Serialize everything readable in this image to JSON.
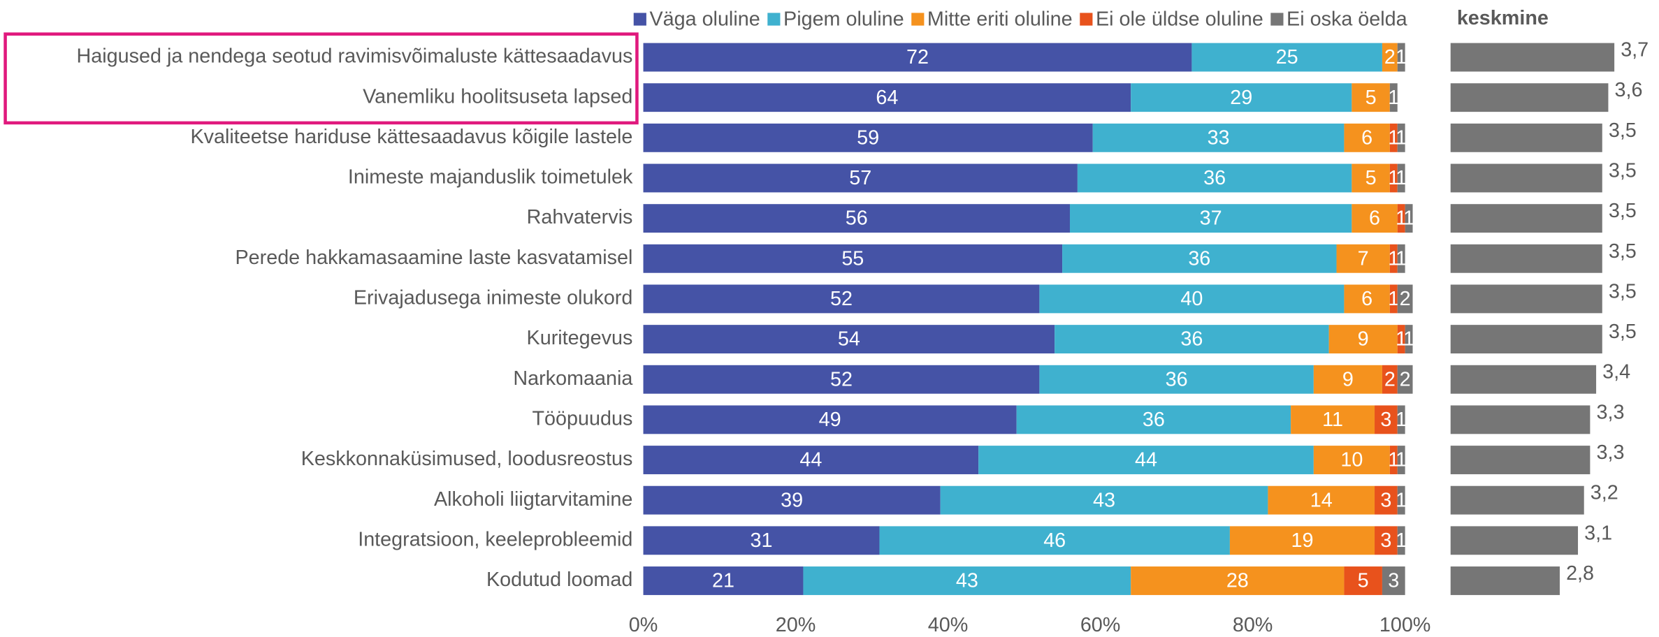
{
  "chart_data": [
    {
      "type": "stacked_bar",
      "orientation": "horizontal",
      "categories": [
        "Haigused ja nendega seotud ravimisvõimaluste kättesaadavus",
        "Vanemliku hoolitsuseta lapsed",
        "Kvaliteetse hariduse kättesaadavus kõigile lastele",
        "Inimeste majanduslik toimetulek",
        "Rahvatervis",
        "Perede hakkamasaamine laste kasvatamisel",
        "Erivajadusega inimeste olukord",
        "Kuritegevus",
        "Narkomaania",
        "Tööpuudus",
        "Keskkonnaküsimused, loodusreostus",
        "Alkoholi liigtarvitamine",
        "Integratsioon, keeleprobleemid",
        "Kodutud loomad"
      ],
      "series": [
        {
          "name": "Väga oluline",
          "color": "#4553a6",
          "values": [
            72,
            64,
            59,
            57,
            56,
            55,
            52,
            54,
            52,
            49,
            44,
            39,
            31,
            21
          ]
        },
        {
          "name": "Pigem oluline",
          "color": "#3fb1cf",
          "values": [
            25,
            29,
            33,
            36,
            37,
            36,
            40,
            36,
            36,
            36,
            44,
            43,
            46,
            43
          ]
        },
        {
          "name": "Mitte eriti oluline",
          "color": "#f5921e",
          "values": [
            2,
            5,
            6,
            5,
            6,
            7,
            6,
            9,
            9,
            11,
            10,
            14,
            19,
            28
          ]
        },
        {
          "name": "Ei ole üldse oluline",
          "color": "#e8521c",
          "values": [
            0,
            0,
            1,
            1,
            1,
            1,
            1,
            1,
            2,
            3,
            1,
            3,
            3,
            5
          ]
        },
        {
          "name": "Ei oska öelda",
          "color": "#767676",
          "values": [
            1,
            1,
            1,
            1,
            1,
            1,
            2,
            1,
            2,
            1,
            1,
            1,
            1,
            3
          ]
        }
      ],
      "xlim": [
        0,
        100
      ],
      "xticks": [
        {
          "value": 0,
          "label": "0%"
        },
        {
          "value": 20,
          "label": "20%"
        },
        {
          "value": 40,
          "label": "40%"
        },
        {
          "value": 60,
          "label": "60%"
        },
        {
          "value": 80,
          "label": "80%"
        },
        {
          "value": 100,
          "label": "100%"
        }
      ],
      "legend": "top"
    },
    {
      "type": "bar",
      "orientation": "horizontal",
      "title": "keskmine",
      "color": "#767676",
      "values": [
        3.7,
        3.6,
        3.5,
        3.5,
        3.5,
        3.5,
        3.5,
        3.5,
        3.4,
        3.3,
        3.3,
        3.2,
        3.1,
        2.8
      ],
      "value_labels": [
        "3,7",
        "3,6",
        "3,5",
        "3,5",
        "3,5",
        "3,5",
        "3,5",
        "3,5",
        "3,4",
        "3,3",
        "3,3",
        "3,2",
        "3,1",
        "2,8"
      ],
      "xlim": [
        1,
        4
      ]
    }
  ]
}
